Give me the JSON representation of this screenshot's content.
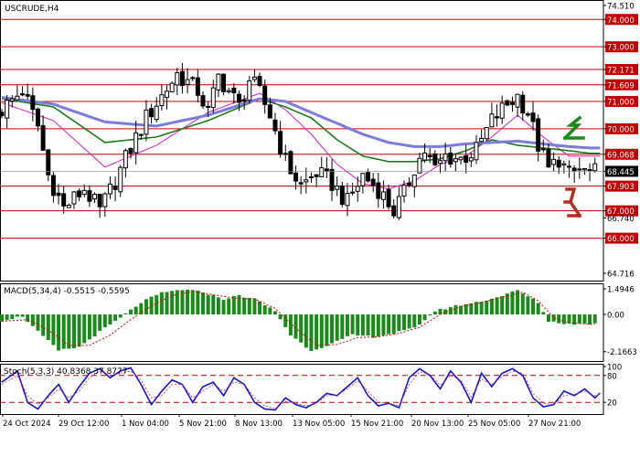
{
  "symbol_label": "USCRUDE,H4",
  "colors": {
    "bull": "#000000",
    "bear": "#000000",
    "ma_fast": "#d41ed4",
    "ma_mid": "#1a7a1a",
    "ma_slow": "#7b7bdc",
    "level": "#c00000",
    "macd_bar": "#1a8a1a",
    "macd_signal": "#d40000",
    "stoch_main": "#1414c8",
    "stoch_signal": "#d41e6e",
    "stoch_level": "#c00000",
    "price_box": "#000000",
    "up_arrow": "#1a8a1a",
    "down_arrow": "#b03020"
  },
  "icons": {
    "up": "up-arrow-icon",
    "down": "down-arrow-icon"
  },
  "chart_data": [
    {
      "type": "candlestick",
      "title": "USCRUDE,H4",
      "ylim": [
        64.716,
        74.51
      ],
      "y_ticks": [
        "74.510",
        "74.000",
        "73.000",
        "72.171",
        "71.609",
        "71.000",
        "70.000",
        "69.068",
        "68.445",
        "67.903",
        "67.000",
        "66.740",
        "66.000",
        "64.716"
      ],
      "level_lines": [
        74.0,
        73.0,
        72.171,
        71.609,
        71.0,
        70.0,
        69.068,
        67.903,
        67.0,
        66.0
      ],
      "current_price": 68.445,
      "x_labels": [
        "24 Oct 2024",
        "29 Oct 12:00",
        "1 Nov 04:00",
        "5 Nov 21:00",
        "8 Nov 13:00",
        "13 Nov 05:00",
        "15 Nov 21:00",
        "20 Nov 13:00",
        "25 Nov 05:00",
        "27 Nov 21:00"
      ],
      "close_path": [
        [
          0,
          70.7
        ],
        [
          4,
          71.4
        ],
        [
          7,
          70.1
        ],
        [
          9,
          68.3
        ],
        [
          12,
          67.1
        ],
        [
          16,
          67.8
        ],
        [
          19,
          67.0
        ],
        [
          22,
          68.1
        ],
        [
          25,
          69.3
        ],
        [
          28,
          70.4
        ],
        [
          31,
          71.2
        ],
        [
          34,
          72.0
        ],
        [
          36,
          71.7
        ],
        [
          38,
          71.4
        ],
        [
          40,
          70.6
        ],
        [
          42,
          71.9
        ],
        [
          44,
          71.4
        ],
        [
          46,
          70.8
        ],
        [
          48,
          71.8
        ],
        [
          50,
          71.3
        ],
        [
          52,
          70.5
        ],
        [
          55,
          68.8
        ],
        [
          58,
          67.9
        ],
        [
          61,
          68.4
        ],
        [
          64,
          68.0
        ],
        [
          67,
          67.3
        ],
        [
          70,
          68.3
        ],
        [
          73,
          67.8
        ],
        [
          76,
          67.0
        ],
        [
          78,
          67.6
        ],
        [
          80,
          68.6
        ],
        [
          82,
          69.2
        ],
        [
          84,
          68.5
        ],
        [
          86,
          69.0
        ],
        [
          89,
          68.9
        ],
        [
          92,
          69.2
        ],
        [
          95,
          70.3
        ],
        [
          98,
          70.9
        ],
        [
          100,
          71.2
        ],
        [
          102,
          70.6
        ],
        [
          104,
          69.4
        ],
        [
          106,
          68.5
        ],
        [
          108,
          68.9
        ],
        [
          110,
          68.3
        ],
        [
          112,
          68.5
        ],
        [
          114,
          68.4
        ]
      ],
      "series": [
        {
          "name": "MA fast",
          "values_path": [
            [
              0,
              70.95
            ],
            [
              10,
              70.3
            ],
            [
              20,
              68.6
            ],
            [
              30,
              69.4
            ],
            [
              40,
              70.6
            ],
            [
              50,
              71.3
            ],
            [
              55,
              70.7
            ],
            [
              60,
              69.8
            ],
            [
              65,
              68.7
            ],
            [
              70,
              68.0
            ],
            [
              75,
              67.8
            ],
            [
              80,
              68.1
            ],
            [
              85,
              68.7
            ],
            [
              90,
              69.0
            ],
            [
              95,
              69.7
            ],
            [
              100,
              70.5
            ],
            [
              105,
              69.7
            ],
            [
              110,
              69.0
            ],
            [
              114,
              69.0
            ]
          ]
        },
        {
          "name": "MA mid",
          "values_path": [
            [
              0,
              71.1
            ],
            [
              10,
              70.8
            ],
            [
              20,
              69.5
            ],
            [
              30,
              69.7
            ],
            [
              40,
              70.3
            ],
            [
              50,
              71.1
            ],
            [
              55,
              70.8
            ],
            [
              60,
              70.4
            ],
            [
              65,
              69.6
            ],
            [
              70,
              69.0
            ],
            [
              75,
              68.8
            ],
            [
              80,
              68.8
            ],
            [
              85,
              68.9
            ],
            [
              90,
              69.2
            ],
            [
              95,
              69.6
            ],
            [
              100,
              69.4
            ],
            [
              105,
              69.3
            ],
            [
              110,
              69.2
            ],
            [
              114,
              69.1
            ]
          ]
        },
        {
          "name": "MA slow",
          "values_path": [
            [
              0,
              71.15
            ],
            [
              10,
              70.9
            ],
            [
              20,
              70.25
            ],
            [
              30,
              70.1
            ],
            [
              40,
              70.5
            ],
            [
              50,
              71.1
            ],
            [
              55,
              71.0
            ],
            [
              60,
              70.6
            ],
            [
              65,
              70.2
            ],
            [
              70,
              69.8
            ],
            [
              75,
              69.5
            ],
            [
              80,
              69.35
            ],
            [
              85,
              69.35
            ],
            [
              90,
              69.45
            ],
            [
              95,
              69.5
            ],
            [
              100,
              69.55
            ],
            [
              105,
              69.45
            ],
            [
              110,
              69.35
            ],
            [
              114,
              69.3
            ]
          ]
        }
      ]
    },
    {
      "type": "bar",
      "title": "MACD(5,34,4) -0.5515 -0.5595",
      "ylim": [
        -2.5,
        1.6
      ],
      "y_ticks": [
        "1.4946",
        "0.00",
        "-2.1663"
      ],
      "values_path": [
        [
          0,
          -0.35
        ],
        [
          4,
          -0.1
        ],
        [
          7,
          -1.0
        ],
        [
          11,
          -2.1
        ],
        [
          15,
          -1.9
        ],
        [
          19,
          -1.0
        ],
        [
          23,
          -0.2
        ],
        [
          27,
          0.7
        ],
        [
          31,
          1.25
        ],
        [
          35,
          1.45
        ],
        [
          39,
          1.3
        ],
        [
          43,
          0.9
        ],
        [
          46,
          1.1
        ],
        [
          49,
          0.9
        ],
        [
          53,
          0.2
        ],
        [
          56,
          -1.2
        ],
        [
          60,
          -2.1
        ],
        [
          64,
          -1.7
        ],
        [
          68,
          -1.2
        ],
        [
          72,
          -1.3
        ],
        [
          76,
          -1.1
        ],
        [
          80,
          -0.8
        ],
        [
          84,
          0.2
        ],
        [
          88,
          0.5
        ],
        [
          92,
          0.7
        ],
        [
          96,
          1.0
        ],
        [
          100,
          1.4
        ],
        [
          104,
          0.7
        ],
        [
          106,
          -0.4
        ],
        [
          110,
          -0.55
        ],
        [
          114,
          -0.55
        ]
      ],
      "signal_path": [
        [
          0,
          -0.4
        ],
        [
          5,
          -0.3
        ],
        [
          9,
          -0.9
        ],
        [
          13,
          -1.8
        ],
        [
          17,
          -1.8
        ],
        [
          21,
          -1.2
        ],
        [
          25,
          -0.3
        ],
        [
          29,
          0.5
        ],
        [
          33,
          1.1
        ],
        [
          37,
          1.35
        ],
        [
          41,
          1.15
        ],
        [
          45,
          0.95
        ],
        [
          49,
          0.9
        ],
        [
          53,
          0.35
        ],
        [
          57,
          -0.8
        ],
        [
          61,
          -1.8
        ],
        [
          65,
          -1.75
        ],
        [
          69,
          -1.35
        ],
        [
          73,
          -1.3
        ],
        [
          77,
          -1.1
        ],
        [
          81,
          -0.75
        ],
        [
          85,
          0.0
        ],
        [
          89,
          0.45
        ],
        [
          93,
          0.7
        ],
        [
          97,
          1.0
        ],
        [
          101,
          1.3
        ],
        [
          104,
          0.8
        ],
        [
          107,
          -0.2
        ],
        [
          110,
          -0.5
        ],
        [
          114,
          -0.56
        ]
      ]
    },
    {
      "type": "line",
      "title": "Stoch(5,3,3) 40.8368 37.8777",
      "ylim": [
        0,
        100
      ],
      "y_ticks": [
        "100",
        "80",
        "20",
        "0"
      ],
      "levels": [
        80,
        20
      ],
      "series": [
        {
          "name": "main",
          "values_path": [
            [
              0,
              65
            ],
            [
              3,
              90
            ],
            [
              5,
              20
            ],
            [
              7,
              5
            ],
            [
              9,
              35
            ],
            [
              11,
              60
            ],
            [
              13,
              20
            ],
            [
              15,
              55
            ],
            [
              17,
              85
            ],
            [
              19,
              95
            ],
            [
              21,
              75
            ],
            [
              23,
              90
            ],
            [
              25,
              97
            ],
            [
              27,
              60
            ],
            [
              29,
              15
            ],
            [
              31,
              45
            ],
            [
              33,
              70
            ],
            [
              35,
              60
            ],
            [
              37,
              20
            ],
            [
              39,
              55
            ],
            [
              41,
              65
            ],
            [
              43,
              35
            ],
            [
              45,
              75
            ],
            [
              47,
              60
            ],
            [
              49,
              20
            ],
            [
              51,
              5
            ],
            [
              53,
              3
            ],
            [
              55,
              30
            ],
            [
              57,
              15
            ],
            [
              59,
              8
            ],
            [
              61,
              20
            ],
            [
              63,
              40
            ],
            [
              65,
              35
            ],
            [
              67,
              55
            ],
            [
              69,
              75
            ],
            [
              71,
              35
            ],
            [
              73,
              12
            ],
            [
              75,
              18
            ],
            [
              77,
              8
            ],
            [
              79,
              75
            ],
            [
              81,
              95
            ],
            [
              83,
              80
            ],
            [
              85,
              50
            ],
            [
              87,
              90
            ],
            [
              89,
              65
            ],
            [
              91,
              20
            ],
            [
              93,
              85
            ],
            [
              95,
              55
            ],
            [
              97,
              85
            ],
            [
              99,
              95
            ],
            [
              101,
              80
            ],
            [
              103,
              30
            ],
            [
              105,
              10
            ],
            [
              107,
              15
            ],
            [
              109,
              45
            ],
            [
              111,
              35
            ],
            [
              113,
              50
            ],
            [
              115,
              30
            ],
            [
              116,
              41
            ]
          ]
        },
        {
          "name": "signal",
          "values_path": [
            [
              0,
              60
            ],
            [
              3,
              80
            ],
            [
              5,
              35
            ],
            [
              7,
              15
            ],
            [
              9,
              30
            ],
            [
              11,
              50
            ],
            [
              13,
              30
            ],
            [
              15,
              45
            ],
            [
              17,
              75
            ],
            [
              19,
              90
            ],
            [
              21,
              80
            ],
            [
              23,
              85
            ],
            [
              25,
              90
            ],
            [
              27,
              70
            ],
            [
              29,
              30
            ],
            [
              31,
              35
            ],
            [
              33,
              60
            ],
            [
              35,
              60
            ],
            [
              37,
              30
            ],
            [
              39,
              45
            ],
            [
              41,
              60
            ],
            [
              43,
              45
            ],
            [
              45,
              65
            ],
            [
              47,
              60
            ],
            [
              49,
              30
            ],
            [
              51,
              12
            ],
            [
              53,
              6
            ],
            [
              55,
              22
            ],
            [
              57,
              18
            ],
            [
              59,
              12
            ],
            [
              61,
              18
            ],
            [
              63,
              35
            ],
            [
              65,
              36
            ],
            [
              67,
              50
            ],
            [
              69,
              68
            ],
            [
              71,
              45
            ],
            [
              73,
              20
            ],
            [
              75,
              18
            ],
            [
              77,
              12
            ],
            [
              79,
              60
            ],
            [
              81,
              88
            ],
            [
              83,
              83
            ],
            [
              85,
              58
            ],
            [
              87,
              80
            ],
            [
              89,
              70
            ],
            [
              91,
              32
            ],
            [
              93,
              72
            ],
            [
              95,
              60
            ],
            [
              97,
              78
            ],
            [
              99,
              90
            ],
            [
              101,
              85
            ],
            [
              103,
              40
            ],
            [
              105,
              18
            ],
            [
              107,
              15
            ],
            [
              109,
              35
            ],
            [
              111,
              38
            ],
            [
              113,
              45
            ],
            [
              115,
              35
            ],
            [
              116,
              38
            ]
          ]
        }
      ]
    }
  ]
}
